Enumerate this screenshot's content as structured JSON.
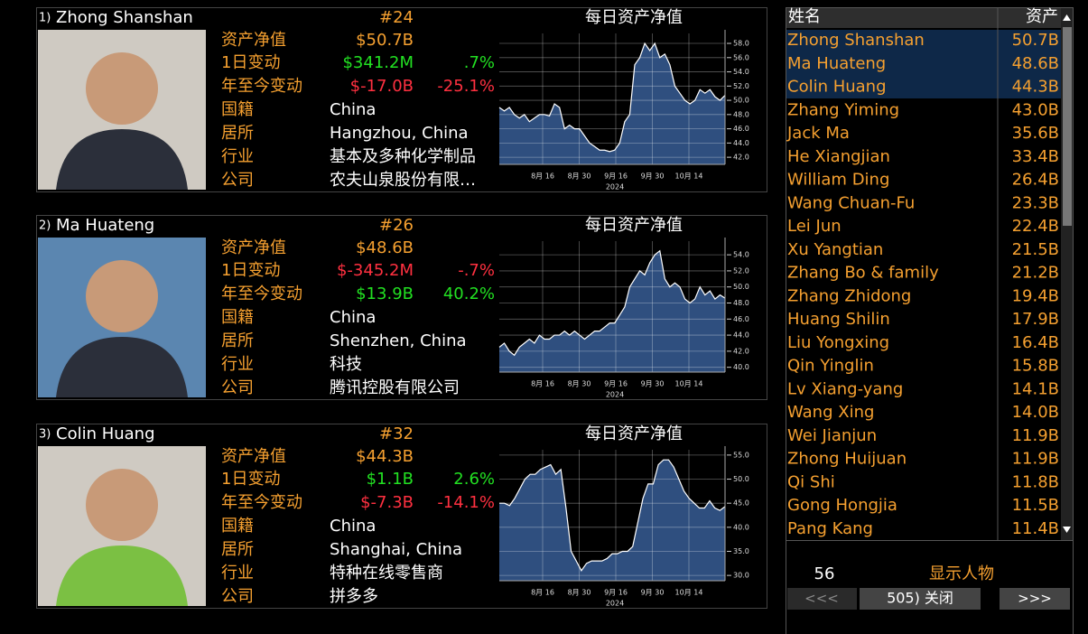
{
  "profiles": [
    {
      "index": "1)",
      "name": "Zhong Shanshan",
      "rank": "#24",
      "chart_title": "每日资产净值",
      "fields": [
        {
          "label": "资产净值",
          "value": "$50.7B"
        },
        {
          "label": "1日变动",
          "value": "$341.2M",
          "pct": ".7%"
        },
        {
          "label": "年至今变动",
          "value": "$-17.0B",
          "pct": "-25.1%"
        },
        {
          "label": "国籍",
          "text": "China"
        },
        {
          "label": "居所",
          "text": "Hangzhou, China"
        },
        {
          "label": "行业",
          "text": "基本及多种化学制品"
        },
        {
          "label": "公司",
          "text": "农夫山泉股份有限…"
        }
      ],
      "chart": {
        "type": "area",
        "ylim": [
          41,
          59.4
        ],
        "yticks": [
          42.0,
          44.0,
          46.0,
          48.0,
          50.0,
          52.0,
          54.0,
          56.0,
          58.0
        ],
        "ytick_labels": [
          "42.0",
          "44.0",
          "46.0",
          "48.0",
          "50.0",
          "52.0",
          "54.0",
          "56.0",
          "58.0"
        ],
        "xlabels": [
          "8月 16",
          "8月 30",
          "9月 16",
          "9月 30",
          "10月 14"
        ],
        "year": "2024",
        "values": [
          49,
          48.5,
          49,
          48,
          47.5,
          48,
          47,
          47.5,
          48,
          48,
          47.8,
          49.5,
          49,
          46,
          46.5,
          46,
          46,
          45,
          44,
          43.5,
          43,
          43,
          42.8,
          43,
          44,
          47,
          48,
          55,
          56,
          58,
          57,
          58,
          56,
          56.5,
          55,
          52,
          51,
          50,
          49.5,
          50,
          51.5,
          51,
          51.5,
          50.5,
          50,
          50.7
        ]
      }
    },
    {
      "index": "2)",
      "name": "Ma Huateng",
      "rank": "#26",
      "chart_title": "每日资产净值",
      "fields": [
        {
          "label": "资产净值",
          "value": "$48.6B"
        },
        {
          "label": "1日变动",
          "value": "$-345.2M",
          "pct": "-.7%"
        },
        {
          "label": "年至今变动",
          "value": "$13.9B",
          "pct": "40.2%"
        },
        {
          "label": "国籍",
          "text": "China"
        },
        {
          "label": "居所",
          "text": "Shenzhen, China"
        },
        {
          "label": "行业",
          "text": "科技"
        },
        {
          "label": "公司",
          "text": "腾讯控股有限公司"
        }
      ],
      "chart": {
        "type": "area",
        "ylim": [
          39.4,
          55.7
        ],
        "yticks": [
          40.0,
          42.0,
          44.0,
          46.0,
          48.0,
          50.0,
          52.0,
          54.0
        ],
        "ytick_labels": [
          "40.0",
          "42.0",
          "44.0",
          "46.0",
          "48.0",
          "50.0",
          "52.0",
          "54.0"
        ],
        "xlabels": [
          "8月 16",
          "8月 30",
          "9月 16",
          "9月 30",
          "10月 14"
        ],
        "year": "2024",
        "values": [
          42.5,
          43,
          42,
          41.5,
          42.5,
          43,
          43.5,
          43,
          44,
          43.5,
          43.5,
          44,
          44,
          44.5,
          44,
          44.5,
          44,
          43.5,
          44,
          44.5,
          44.5,
          45,
          45.5,
          45.5,
          46.5,
          47.5,
          50,
          51,
          52,
          51.5,
          53,
          54,
          54.5,
          51,
          50,
          50.5,
          50,
          48.5,
          48,
          48.5,
          50,
          49,
          49.5,
          48.5,
          49,
          48.6
        ]
      }
    },
    {
      "index": "3)",
      "name": "Colin Huang",
      "rank": "#32",
      "chart_title": "每日资产净值",
      "fields": [
        {
          "label": "资产净值",
          "value": "$44.3B"
        },
        {
          "label": "1日变动",
          "value": "$1.1B",
          "pct": "2.6%"
        },
        {
          "label": "年至今变动",
          "value": "$-7.3B",
          "pct": "-14.1%"
        },
        {
          "label": "国籍",
          "text": "China"
        },
        {
          "label": "居所",
          "text": "Shanghai, China"
        },
        {
          "label": "行业",
          "text": "特种在线零售商"
        },
        {
          "label": "公司",
          "text": "拼多多"
        }
      ],
      "chart": {
        "type": "area",
        "ylim": [
          28.9,
          56.1
        ],
        "yticks": [
          30.0,
          35.0,
          40.0,
          45.0,
          50.0,
          55.0
        ],
        "ytick_labels": [
          "30.0",
          "35.0",
          "40.0",
          "45.0",
          "50.0",
          "55.0"
        ],
        "xlabels": [
          "8月 16",
          "8月 30",
          "9月 16",
          "9月 30",
          "10月 14"
        ],
        "year": "2024",
        "values": [
          45,
          45,
          44.5,
          46,
          48,
          50,
          51,
          51,
          52,
          52.5,
          53,
          51,
          52,
          44,
          35,
          33,
          31,
          32.5,
          33,
          33,
          33,
          33.5,
          34.5,
          34.5,
          35,
          35,
          36,
          41,
          46,
          49,
          49,
          53,
          54,
          54,
          52.5,
          50,
          47.5,
          46,
          45,
          44,
          44,
          45.5,
          44,
          43.5,
          44.3
        ]
      }
    }
  ],
  "table": {
    "headers": [
      "姓名",
      "资产"
    ],
    "rows": [
      [
        "Zhong Shanshan",
        "50.7B"
      ],
      [
        "Ma Huateng",
        "48.6B"
      ],
      [
        "Colin Huang",
        "44.3B"
      ],
      [
        "Zhang Yiming",
        "43.0B"
      ],
      [
        "Jack Ma",
        "35.6B"
      ],
      [
        "He Xiangjian",
        "33.4B"
      ],
      [
        "William Ding",
        "26.4B"
      ],
      [
        "Wang Chuan-Fu",
        "23.3B"
      ],
      [
        "Lei Jun",
        "22.4B"
      ],
      [
        "Xu Yangtian",
        "21.5B"
      ],
      [
        "Zhang Bo & family",
        "21.2B"
      ],
      [
        "Zhang Zhidong",
        "19.4B"
      ],
      [
        "Huang Shilin",
        "17.9B"
      ],
      [
        "Liu Yongxing",
        "16.4B"
      ],
      [
        "Qin Yinglin",
        "15.8B"
      ],
      [
        "Lv Xiang-yang",
        "14.1B"
      ],
      [
        "Wang Xing",
        "14.0B"
      ],
      [
        "Wei Jianjun",
        "11.9B"
      ],
      [
        "Zhong Huijuan",
        "11.9B"
      ],
      [
        "Qi Shi",
        "11.8B"
      ],
      [
        "Gong Hongjia",
        "11.5B"
      ],
      [
        "Pang Kang",
        "11.4B"
      ]
    ]
  },
  "footer": {
    "count": 56,
    "show_label": "显示人物",
    "buttons": [
      "<<<",
      "505) 关闭",
      ">>>"
    ]
  }
}
